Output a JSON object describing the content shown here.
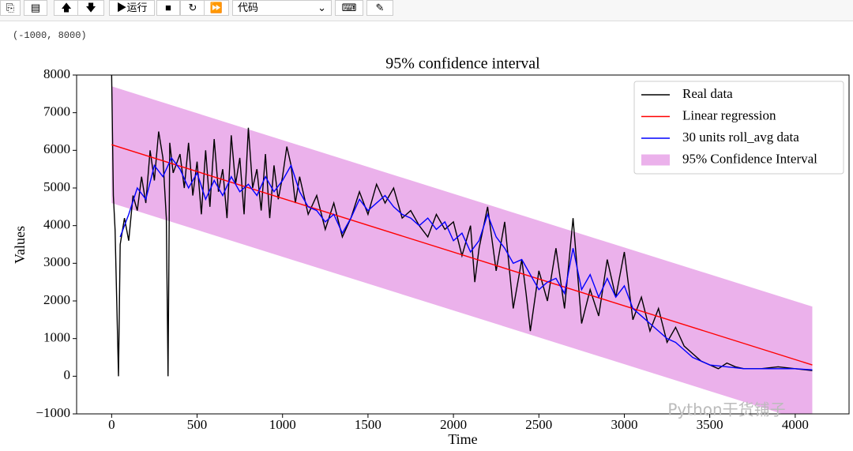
{
  "toolbar": {
    "run": "运行",
    "cell_type": "代码"
  },
  "output_text": "(-1000, 8000)",
  "watermark": "Python干货铺子",
  "chart_data": {
    "type": "line",
    "title": "95% confidence interval",
    "x_label": "Time",
    "y_label": "Values",
    "xlim": [
      -205,
      4315
    ],
    "ylim": [
      -1000,
      8000
    ],
    "xticks": [
      0,
      500,
      1000,
      1500,
      2000,
      2500,
      3000,
      3500,
      4000
    ],
    "yticks": [
      {
        "value": -1000,
        "label": "−1000"
      },
      0,
      1000,
      2000,
      3000,
      4000,
      5000,
      6000,
      7000,
      8000
    ],
    "legend": "upper right",
    "series": [
      {
        "name": "Real data",
        "color": "#000000",
        "x": [
          0,
          10,
          20,
          40,
          50,
          75,
          100,
          125,
          150,
          175,
          200,
          225,
          250,
          275,
          300,
          320,
          330,
          340,
          360,
          400,
          425,
          450,
          475,
          500,
          525,
          550,
          575,
          600,
          625,
          650,
          675,
          700,
          725,
          750,
          775,
          800,
          825,
          850,
          875,
          900,
          925,
          950,
          975,
          1000,
          1025,
          1050,
          1075,
          1100,
          1150,
          1200,
          1250,
          1300,
          1350,
          1400,
          1450,
          1500,
          1550,
          1600,
          1650,
          1700,
          1750,
          1800,
          1850,
          1900,
          1950,
          2000,
          2050,
          2100,
          2125,
          2150,
          2200,
          2250,
          2300,
          2350,
          2400,
          2425,
          2450,
          2500,
          2550,
          2600,
          2650,
          2700,
          2750,
          2800,
          2850,
          2900,
          2950,
          3000,
          3050,
          3100,
          3150,
          3200,
          3250,
          3300,
          3350,
          3400,
          3450,
          3500,
          3550,
          3600,
          3650,
          3700,
          3800,
          3900,
          4000,
          4100
        ],
        "values": [
          8000,
          4800,
          3900,
          0,
          3500,
          4200,
          3600,
          4800,
          4400,
          5300,
          4600,
          6000,
          5200,
          6500,
          5800,
          4200,
          0,
          6200,
          5400,
          5900,
          5000,
          6200,
          4800,
          5700,
          4300,
          6000,
          4500,
          6300,
          4900,
          5500,
          4200,
          6400,
          5100,
          5800,
          4300,
          6600,
          5000,
          5500,
          4400,
          5900,
          4200,
          5600,
          4700,
          5300,
          6100,
          5600,
          4600,
          5300,
          4300,
          4800,
          3900,
          4600,
          3700,
          4200,
          4900,
          4300,
          5100,
          4600,
          5000,
          4200,
          4400,
          4000,
          3700,
          4300,
          3900,
          4100,
          3200,
          4000,
          2500,
          3400,
          4500,
          2800,
          4100,
          1800,
          3100,
          2200,
          1200,
          2800,
          2000,
          3400,
          1800,
          4200,
          1400,
          2300,
          1600,
          3100,
          2100,
          3300,
          1500,
          2100,
          1200,
          1800,
          900,
          1300,
          800,
          600,
          400,
          300,
          200,
          350,
          250,
          200,
          200,
          250,
          200,
          150
        ]
      },
      {
        "name": "Linear regression",
        "color": "#ff0000",
        "x": [
          0,
          4100
        ],
        "values": [
          6150,
          300
        ]
      },
      {
        "name": "30 units roll_avg data",
        "color": "#0000ff",
        "x": [
          50,
          100,
          150,
          200,
          250,
          300,
          350,
          400,
          450,
          500,
          550,
          600,
          650,
          700,
          750,
          800,
          850,
          900,
          950,
          1000,
          1050,
          1100,
          1150,
          1200,
          1250,
          1300,
          1350,
          1400,
          1450,
          1500,
          1550,
          1600,
          1650,
          1700,
          1750,
          1800,
          1850,
          1900,
          1950,
          2000,
          2050,
          2100,
          2150,
          2200,
          2250,
          2300,
          2350,
          2400,
          2450,
          2500,
          2550,
          2600,
          2650,
          2700,
          2750,
          2800,
          2850,
          2900,
          2950,
          3000,
          3050,
          3100,
          3150,
          3200,
          3250,
          3300,
          3350,
          3400,
          3450,
          3500,
          3600,
          3700,
          3800,
          3900,
          4000,
          4100
        ],
        "values": [
          3700,
          4300,
          5000,
          4700,
          5600,
          5300,
          5800,
          5500,
          5000,
          5400,
          4700,
          5200,
          4800,
          5300,
          4900,
          5100,
          4800,
          5300,
          4900,
          5200,
          5600,
          4900,
          4500,
          4400,
          4100,
          4300,
          3800,
          4200,
          4700,
          4400,
          4600,
          4800,
          4500,
          4300,
          4200,
          4000,
          4200,
          3900,
          4100,
          3600,
          3800,
          3300,
          3600,
          4300,
          3700,
          3400,
          3000,
          3100,
          2700,
          2300,
          2500,
          2600,
          2200,
          3400,
          2300,
          2700,
          2100,
          2600,
          2100,
          2400,
          1800,
          1600,
          1400,
          1200,
          1000,
          900,
          700,
          500,
          400,
          300,
          250,
          200,
          200,
          200,
          200,
          170
        ]
      },
      {
        "name": "95% Confidence Interval",
        "color": "#ebb1eb",
        "x": [
          0,
          4100
        ],
        "upper": [
          7700,
          1850
        ],
        "lower": [
          4600,
          -1250
        ]
      }
    ]
  }
}
